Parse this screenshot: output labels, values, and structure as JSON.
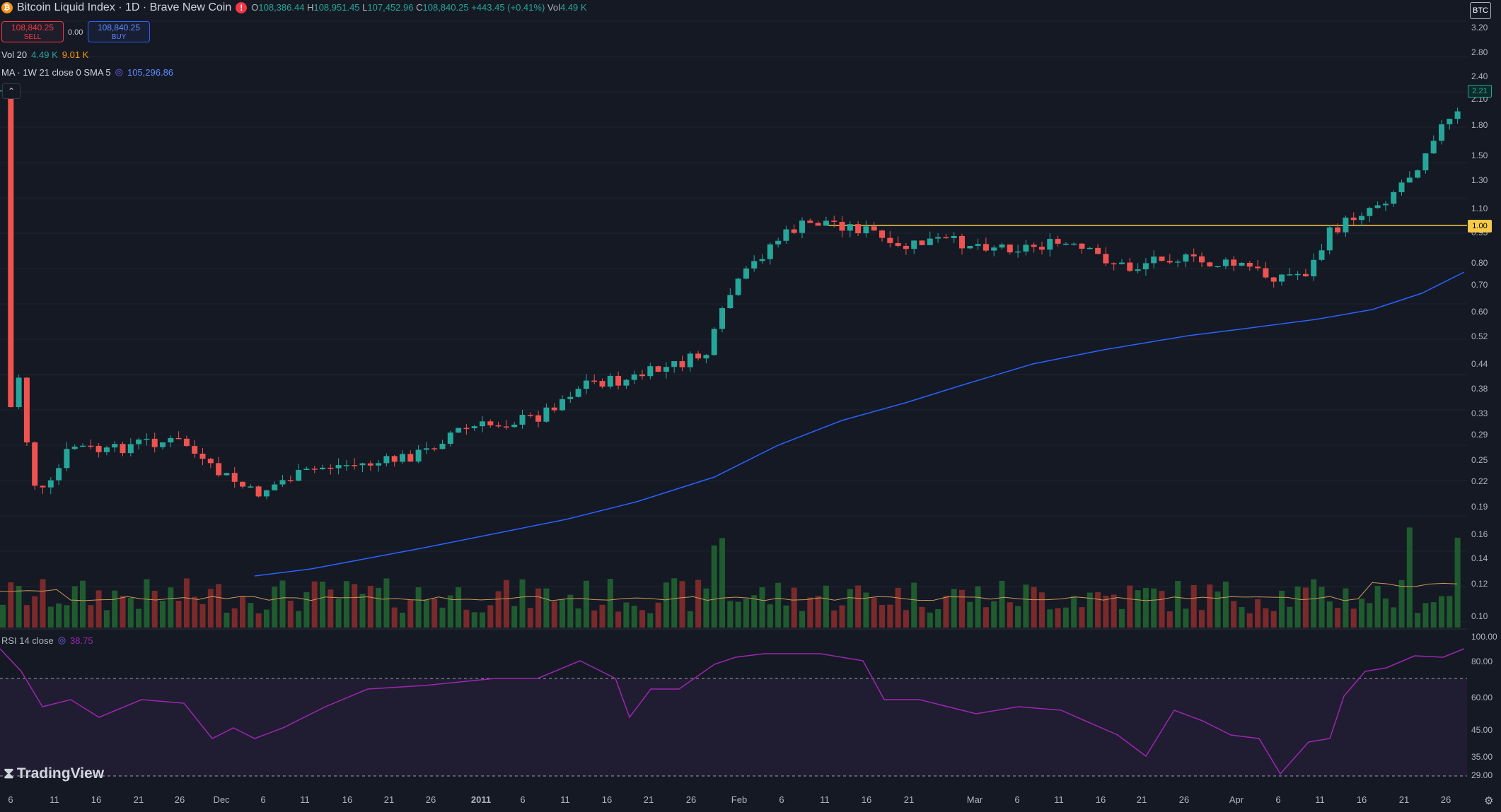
{
  "symbol": {
    "icon": "bitcoin-icon",
    "title": "Bitcoin Liquid Index · 1D · Brave New Coin",
    "ohlc": {
      "o_label": "O",
      "o": "108,386.44",
      "h_label": "H",
      "h": "108,951.45",
      "l_label": "L",
      "l": "107,452.96",
      "c_label": "C",
      "c": "108,840.25",
      "change": "+443.45 (+0.41%)",
      "vol_label": "Vol",
      "vol": "4.49 K"
    }
  },
  "trade": {
    "sell_price": "108,840.25",
    "sell_label": "SELL",
    "spread": "0.00",
    "buy_price": "108,840.25",
    "buy_label": "BUY"
  },
  "indicators": {
    "vol": {
      "label": "Vol 20",
      "v1": "4.49 K",
      "v2": "9.01 K"
    },
    "ma": {
      "label": "MA · 1W 21 close 0 SMA 5",
      "value": "105,296.86"
    },
    "rsi": {
      "label": "RSI 14 close",
      "value": "38.75"
    }
  },
  "price_axis": {
    "currency": "BTC",
    "labels": [
      "3.20",
      "2.80",
      "2.40",
      "2.10",
      "1.80",
      "1.50",
      "1.30",
      "1.10",
      "0.95",
      "0.80",
      "0.70",
      "0.60",
      "0.52",
      "0.44",
      "0.38",
      "0.33",
      "0.29",
      "0.25",
      "0.22",
      "0.19",
      "0.16",
      "0.14",
      "0.12",
      "0.10"
    ],
    "current_price": "2.21",
    "hline_price": "1.00"
  },
  "rsi_axis": {
    "labels": [
      "100.00",
      "80.00",
      "60.00",
      "45.00",
      "35.00",
      "29.00"
    ]
  },
  "time_axis": {
    "labels": [
      "6",
      "11",
      "16",
      "21",
      "26",
      "Dec",
      "6",
      "11",
      "16",
      "21",
      "26",
      "2011",
      "6",
      "11",
      "16",
      "21",
      "26",
      "Feb",
      "6",
      "11",
      "16",
      "21",
      "Mar",
      "6",
      "11",
      "16",
      "21",
      "26",
      "Apr",
      "6",
      "11",
      "16",
      "21",
      "26"
    ]
  },
  "colors": {
    "up": "#26a69a",
    "down": "#ef5350",
    "ma_line": "#2962ff",
    "hline": "#f7c948",
    "rsi_line": "#9c27b0",
    "vol_up": "#1f5b2e",
    "vol_down": "#7a2a2a",
    "vol_ma": "#c89a5a"
  },
  "branding": {
    "logo": "TradingView"
  }
}
